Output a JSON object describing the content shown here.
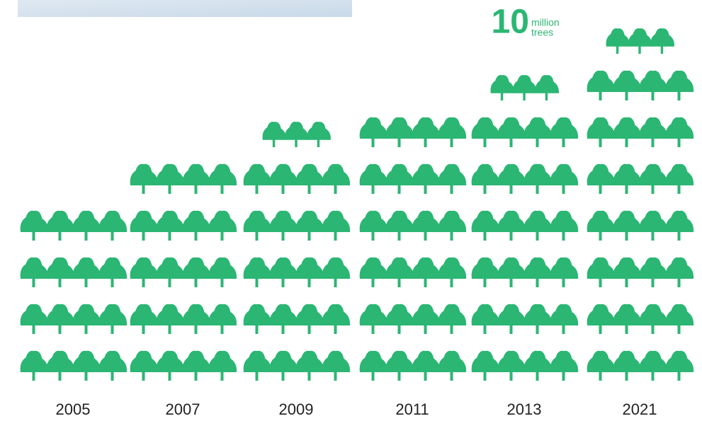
{
  "chart_data": {
    "type": "pictogram",
    "categories": [
      "2005",
      "2007",
      "2009",
      "2011",
      "2013",
      "2021"
    ],
    "values": [
      40,
      50,
      57.5,
      60,
      67.5,
      77.5
    ],
    "color": "#2bb673",
    "legend": {
      "value": 10,
      "unit": [
        "million",
        "trees"
      ]
    }
  }
}
